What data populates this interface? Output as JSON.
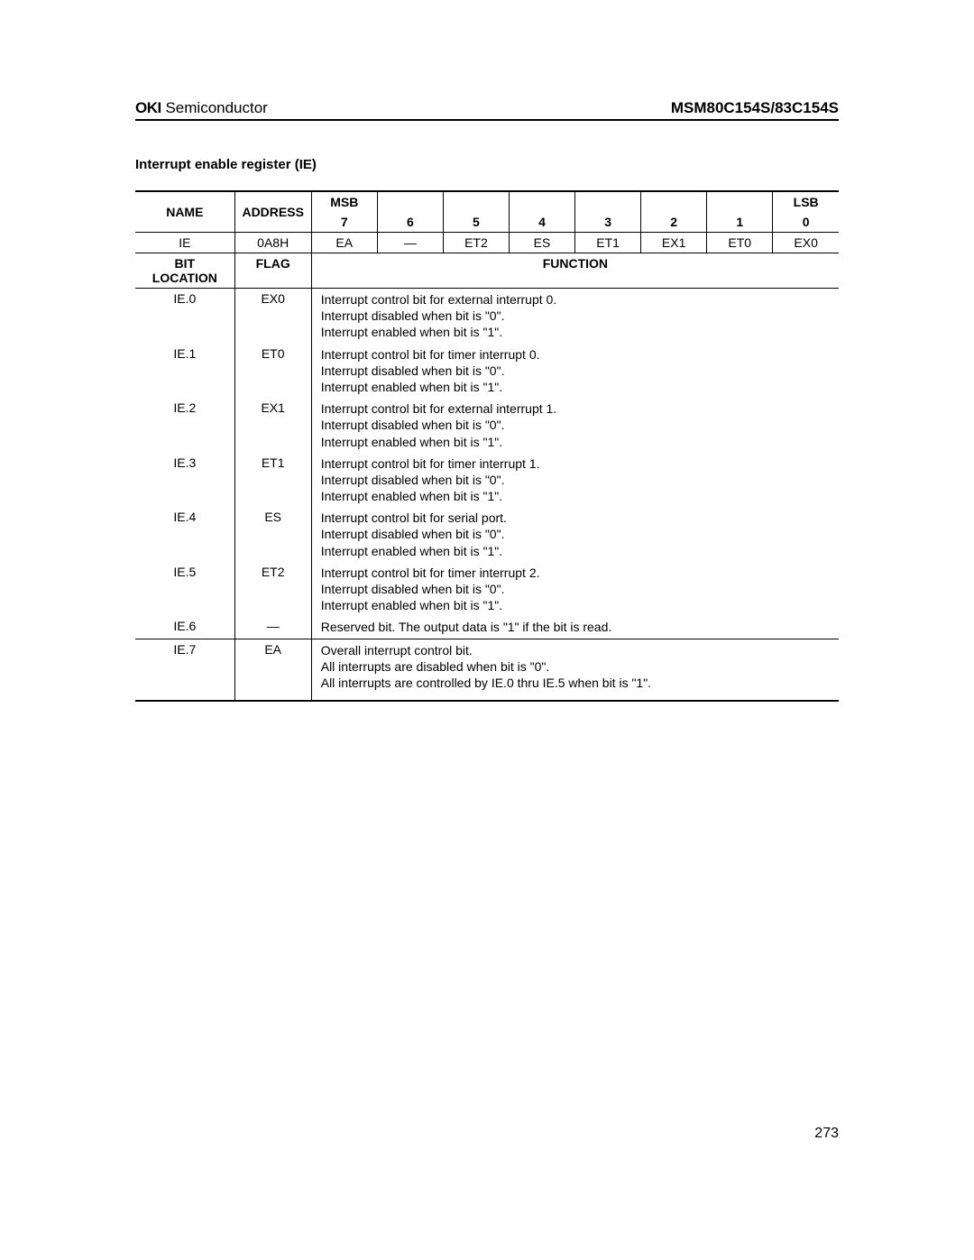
{
  "header": {
    "brand_bold": "OKI",
    "brand_light": " Semiconductor",
    "part_number": "MSM80C154S/83C154S"
  },
  "section_title": "Interrupt enable register (IE)",
  "table": {
    "top_headers": {
      "name": "NAME",
      "address": "ADDRESS",
      "msb": "MSB",
      "lsb": "LSB",
      "bits": [
        "7",
        "6",
        "5",
        "4",
        "3",
        "2",
        "1",
        "0"
      ]
    },
    "register_row": {
      "name": "IE",
      "address": "0A8H",
      "bits": [
        "EA",
        "—",
        "ET2",
        "ES",
        "ET1",
        "EX1",
        "ET0",
        "EX0"
      ]
    },
    "sub_headers": {
      "bit_location": "BIT LOCATION",
      "flag": "FLAG",
      "function": "FUNCTION"
    },
    "rows": [
      {
        "bit": "IE.0",
        "flag": "EX0",
        "function": "Interrupt control bit for external interrupt 0.\nInterrupt disabled when bit is \"0\".\nInterrupt enabled when bit is \"1\"."
      },
      {
        "bit": "IE.1",
        "flag": "ET0",
        "function": "Interrupt control bit for timer interrupt 0.\nInterrupt disabled when bit is \"0\".\nInterrupt enabled when bit is \"1\"."
      },
      {
        "bit": "IE.2",
        "flag": "EX1",
        "function": "Interrupt control bit for external interrupt 1.\nInterrupt disabled when bit is \"0\".\nInterrupt enabled when bit is \"1\"."
      },
      {
        "bit": "IE.3",
        "flag": "ET1",
        "function": "Interrupt control bit for timer interrupt 1.\nInterrupt disabled when bit is \"0\".\nInterrupt enabled when bit is \"1\"."
      },
      {
        "bit": "IE.4",
        "flag": "ES",
        "function": "Interrupt control bit for serial port.\nInterrupt disabled when bit is \"0\".\nInterrupt enabled when bit is \"1\"."
      },
      {
        "bit": "IE.5",
        "flag": "ET2",
        "function": "Interrupt control bit for timer interrupt 2.\nInterrupt disabled when bit is \"0\".\nInterrupt enabled when bit is \"1\"."
      },
      {
        "bit": "IE.6",
        "flag": "—",
        "function": "Reserved bit.  The output data is \"1\" if the bit is read.",
        "single": true
      },
      {
        "bit": "IE.7",
        "flag": "EA",
        "function": "Overall interrupt control bit.\nAll interrupts are disabled when bit is \"0\".\nAll interrupts are controlled by IE.0 thru IE.5 when bit is \"1\".",
        "last": true
      }
    ]
  },
  "page_number": "273"
}
